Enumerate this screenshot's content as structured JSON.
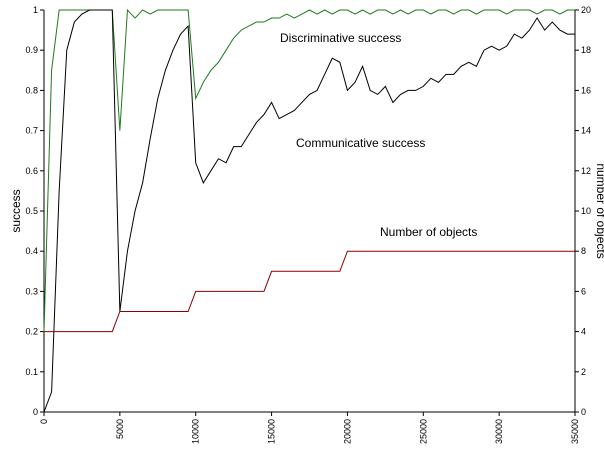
{
  "chart_data": {
    "type": "line",
    "y_label": "success",
    "y2_label": "number of objects",
    "annotations": [
      "Discriminative success",
      "Communicative success",
      "Number of objects"
    ],
    "x": [
      0,
      500,
      1000,
      1500,
      2000,
      2500,
      3000,
      3500,
      4000,
      4500,
      5000,
      5500,
      6000,
      6500,
      7000,
      7500,
      8000,
      8500,
      9000,
      9500,
      10000,
      10500,
      11000,
      11500,
      12000,
      12500,
      13000,
      13500,
      14000,
      14500,
      15000,
      15500,
      16000,
      16500,
      17000,
      17500,
      18000,
      18500,
      19000,
      19500,
      20000,
      20500,
      21000,
      21500,
      22000,
      22500,
      23000,
      23500,
      24000,
      24500,
      25000,
      25500,
      26000,
      26500,
      27000,
      27500,
      28000,
      28500,
      29000,
      29500,
      30000,
      30500,
      31000,
      31500,
      32000,
      32500,
      33000,
      33500,
      34000,
      34500,
      35000
    ],
    "xlim": [
      0,
      35000
    ],
    "xticks": [
      0,
      5000,
      10000,
      15000,
      20000,
      25000,
      30000,
      35000
    ],
    "ylim": [
      0,
      1
    ],
    "yticks": [
      0,
      0.1,
      0.2,
      0.3,
      0.4,
      0.5,
      0.6,
      0.7,
      0.8,
      0.9,
      1
    ],
    "y2lim": [
      0,
      20
    ],
    "y2ticks": [
      0,
      2,
      4,
      6,
      8,
      10,
      12,
      14,
      16,
      18,
      20
    ],
    "grid": false,
    "series": [
      {
        "name": "Discriminative success",
        "color": "#1e7a1e",
        "values": [
          0.2,
          0.85,
          1,
          1,
          1,
          1,
          1,
          1,
          1,
          1,
          0.7,
          1,
          0.98,
          1,
          0.99,
          1,
          1,
          1,
          1,
          1,
          0.78,
          0.82,
          0.85,
          0.87,
          0.9,
          0.93,
          0.95,
          0.96,
          0.97,
          0.97,
          0.98,
          0.98,
          0.99,
          0.98,
          0.99,
          1,
          0.99,
          1,
          0.99,
          1,
          1,
          0.99,
          1,
          0.99,
          1,
          1,
          0.99,
          1,
          0.99,
          1,
          1,
          0.99,
          1,
          1,
          0.99,
          1,
          1,
          0.99,
          1,
          1,
          1,
          0.99,
          1,
          1,
          1,
          0.99,
          1,
          1,
          0.99,
          1,
          1
        ]
      },
      {
        "name": "Communicative success",
        "color": "#000000",
        "values": [
          0,
          0.05,
          0.55,
          0.9,
          0.97,
          0.99,
          1,
          1,
          1,
          1,
          0.25,
          0.4,
          0.5,
          0.57,
          0.68,
          0.78,
          0.85,
          0.9,
          0.94,
          0.96,
          0.62,
          0.57,
          0.6,
          0.63,
          0.62,
          0.66,
          0.66,
          0.69,
          0.72,
          0.74,
          0.77,
          0.73,
          0.74,
          0.75,
          0.77,
          0.79,
          0.8,
          0.84,
          0.88,
          0.87,
          0.8,
          0.82,
          0.86,
          0.8,
          0.79,
          0.81,
          0.77,
          0.79,
          0.8,
          0.8,
          0.81,
          0.83,
          0.82,
          0.84,
          0.84,
          0.86,
          0.87,
          0.86,
          0.9,
          0.91,
          0.9,
          0.91,
          0.94,
          0.93,
          0.95,
          0.98,
          0.95,
          0.97,
          0.95,
          0.94,
          0.94
        ]
      },
      {
        "name": "Number of objects",
        "color": "#8b0000",
        "axis": "y2",
        "values": [
          4,
          4,
          4,
          4,
          4,
          4,
          4,
          4,
          4,
          4,
          5,
          5,
          5,
          5,
          5,
          5,
          5,
          5,
          5,
          5,
          6,
          6,
          6,
          6,
          6,
          6,
          6,
          6,
          6,
          6,
          7,
          7,
          7,
          7,
          7,
          7,
          7,
          7,
          7,
          7,
          8,
          8,
          8,
          8,
          8,
          8,
          8,
          8,
          8,
          8,
          8,
          8,
          8,
          8,
          8,
          8,
          8,
          8,
          8,
          8,
          8,
          8,
          8,
          8,
          8,
          8,
          8,
          8,
          8,
          8,
          8
        ]
      }
    ]
  }
}
